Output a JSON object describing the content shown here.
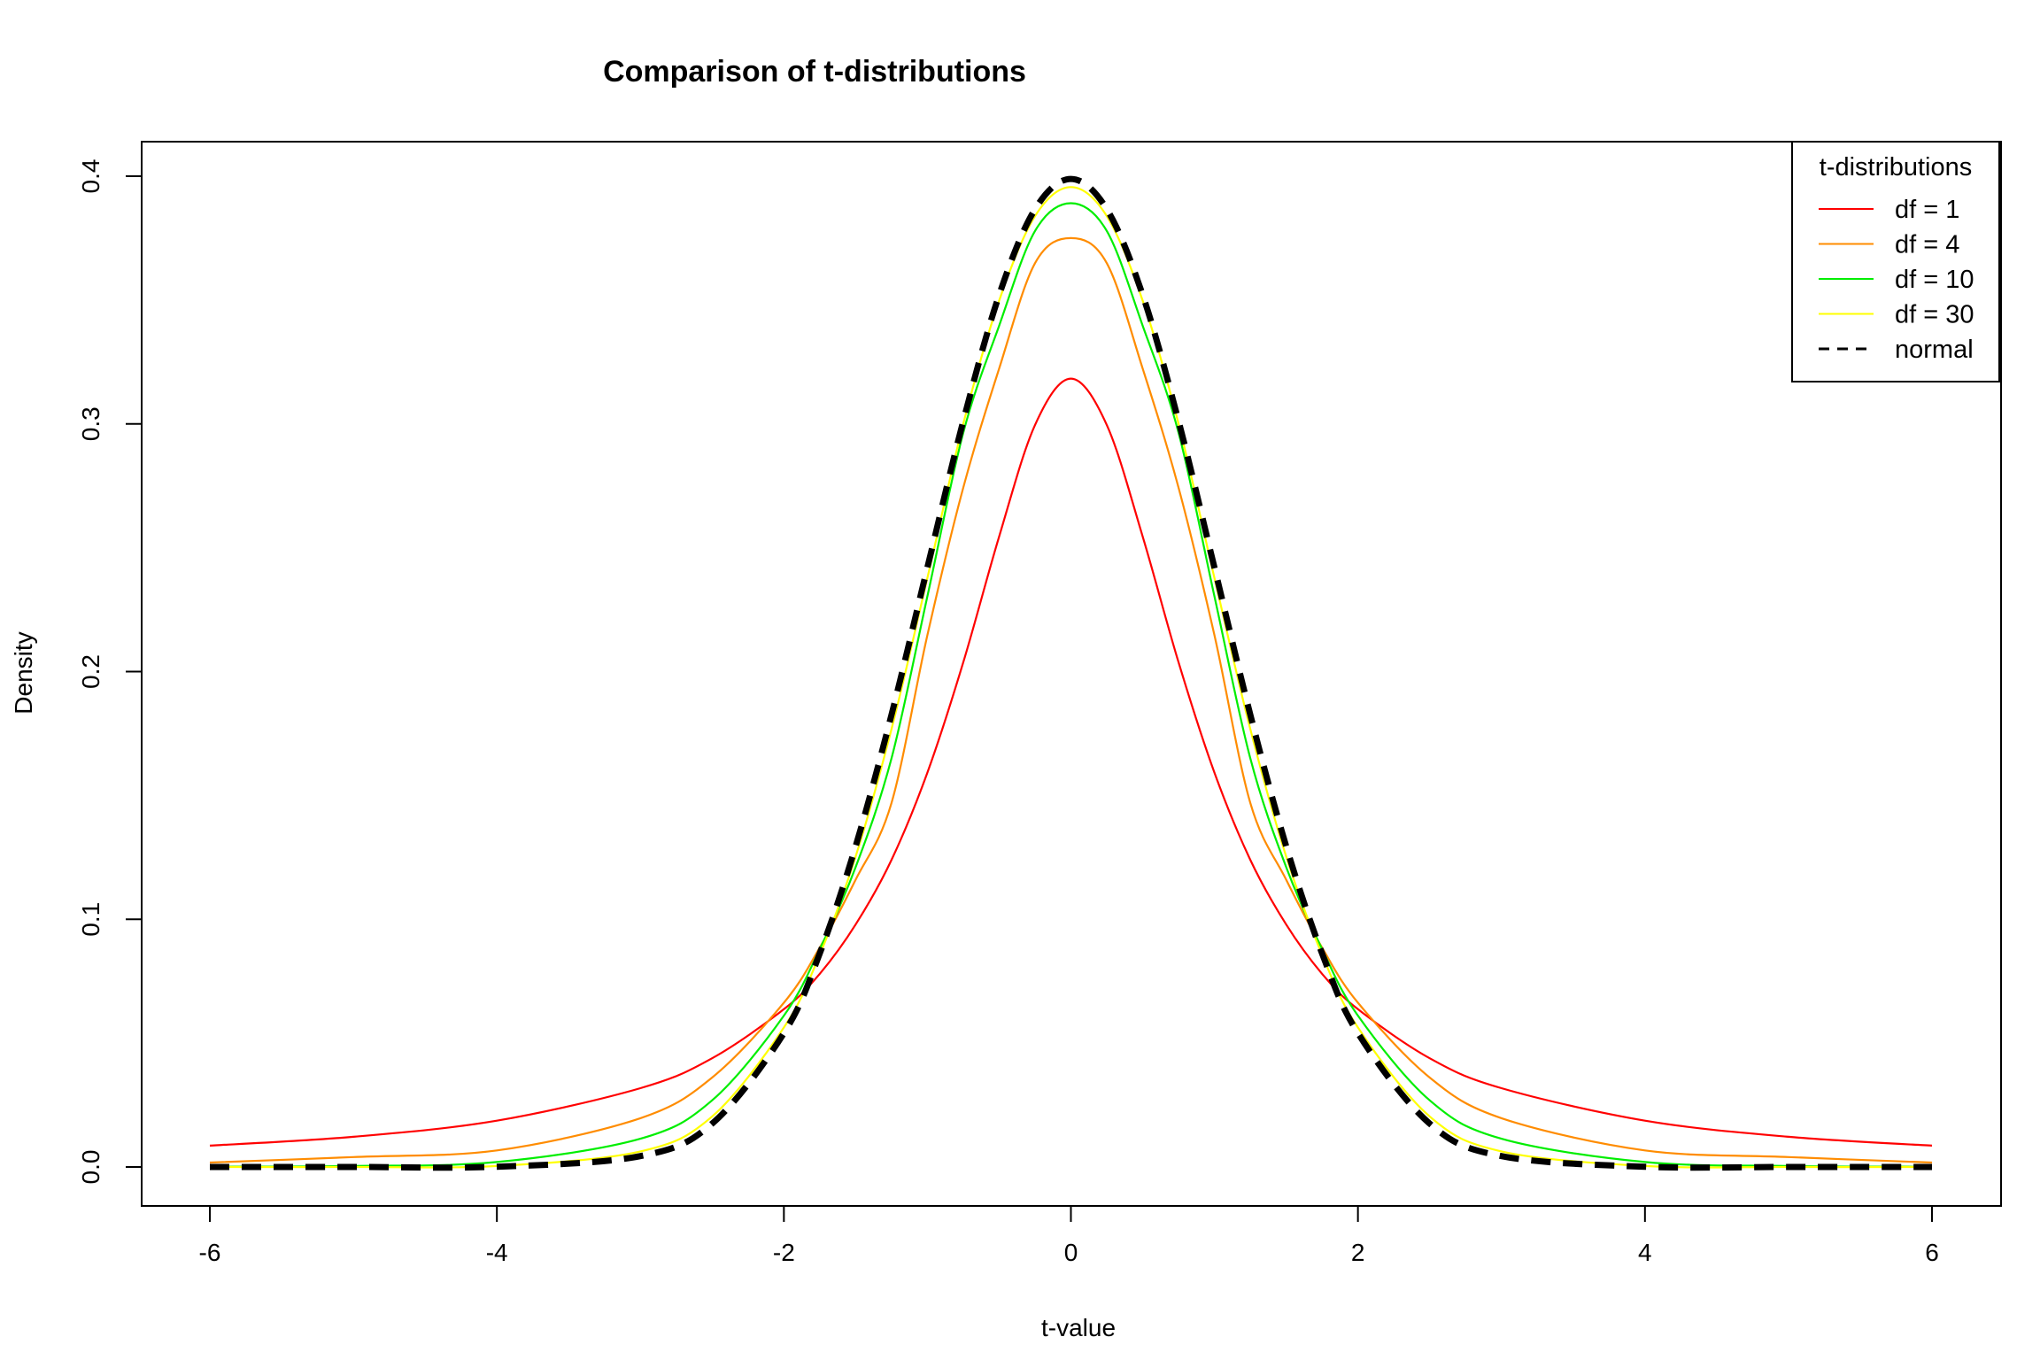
{
  "chart_data": {
    "type": "line",
    "title": "Comparison of t-distributions",
    "xlabel": "t-value",
    "ylabel": "Density",
    "xlim": [
      -6,
      6
    ],
    "ylim": [
      0,
      0.4
    ],
    "x_ticks": [
      -6,
      -4,
      -2,
      0,
      2,
      4,
      6
    ],
    "x_tick_labels": [
      "-6",
      "-4",
      "-2",
      "0",
      "2",
      "4",
      "6"
    ],
    "y_ticks": [
      0,
      0.1,
      0.2,
      0.3,
      0.4
    ],
    "y_tick_labels": [
      "0.0",
      "0.1",
      "0.2",
      "0.3",
      "0.4"
    ],
    "grid": false,
    "legend": {
      "title": "t-distributions",
      "placement": "top-right",
      "entries": [
        "df = 1",
        "df = 4",
        "df = 10",
        "df = 30",
        "normal"
      ]
    },
    "x": [
      -6,
      -5,
      -4,
      -3,
      -2.5,
      -2,
      -1.75,
      -1.5,
      -1.25,
      -1,
      -0.75,
      -0.5,
      -0.25,
      0,
      0.25,
      0.5,
      0.75,
      1,
      1.25,
      1.5,
      1.75,
      2,
      2.5,
      3,
      4,
      5,
      6
    ],
    "series": [
      {
        "name": "df = 1",
        "color": "#ff0000",
        "dash": "solid",
        "values": [
          0.0086,
          0.0122,
          0.0187,
          0.0318,
          0.0439,
          0.0637,
          0.078,
          0.0979,
          0.124,
          0.1592,
          0.2037,
          0.2546,
          0.2996,
          0.3183,
          0.2996,
          0.2546,
          0.2037,
          0.1592,
          0.124,
          0.0979,
          0.078,
          0.0637,
          0.0439,
          0.0318,
          0.0187,
          0.0122,
          0.0086
        ]
      },
      {
        "name": "df = 4",
        "color": "#ff8c00",
        "dash": "solid",
        "values": [
          0.0018,
          0.004,
          0.0067,
          0.0197,
          0.0361,
          0.0663,
          0.0886,
          0.116,
          0.147,
          0.2147,
          0.2742,
          0.3224,
          0.3649,
          0.375,
          0.3649,
          0.3224,
          0.2742,
          0.2147,
          0.147,
          0.116,
          0.0886,
          0.0663,
          0.0361,
          0.0197,
          0.0067,
          0.004,
          0.0018
        ]
      },
      {
        "name": "df = 10",
        "color": "#00ee00",
        "dash": "solid",
        "values": [
          0.0001,
          0.0004,
          0.002,
          0.0114,
          0.0269,
          0.0611,
          0.088,
          0.1211,
          0.165,
          0.2304,
          0.2964,
          0.3397,
          0.3779,
          0.3891,
          0.3779,
          0.3397,
          0.2964,
          0.2304,
          0.165,
          0.1211,
          0.088,
          0.0611,
          0.0269,
          0.0114,
          0.002,
          0.0004,
          0.0001
        ]
      },
      {
        "name": "df = 30",
        "color": "#ffff00",
        "dash": "solid",
        "values": [
          0.0,
          0.0,
          0.0004,
          0.0063,
          0.0204,
          0.0563,
          0.0858,
          0.1254,
          0.1768,
          0.2378,
          0.3,
          0.3498,
          0.3839,
          0.3956,
          0.3839,
          0.3498,
          0.3,
          0.2378,
          0.1768,
          0.1254,
          0.0858,
          0.0563,
          0.0204,
          0.0063,
          0.0004,
          0.0,
          0.0
        ]
      },
      {
        "name": "normal",
        "color": "#000000",
        "dash": "dashed",
        "values": [
          0.0,
          0.0,
          0.0001,
          0.0044,
          0.0175,
          0.054,
          0.0863,
          0.1295,
          0.1826,
          0.242,
          0.3011,
          0.3521,
          0.3867,
          0.3989,
          0.3867,
          0.3521,
          0.3011,
          0.242,
          0.1826,
          0.1295,
          0.0863,
          0.054,
          0.0175,
          0.0044,
          0.0001,
          0.0,
          0.0
        ]
      }
    ]
  }
}
